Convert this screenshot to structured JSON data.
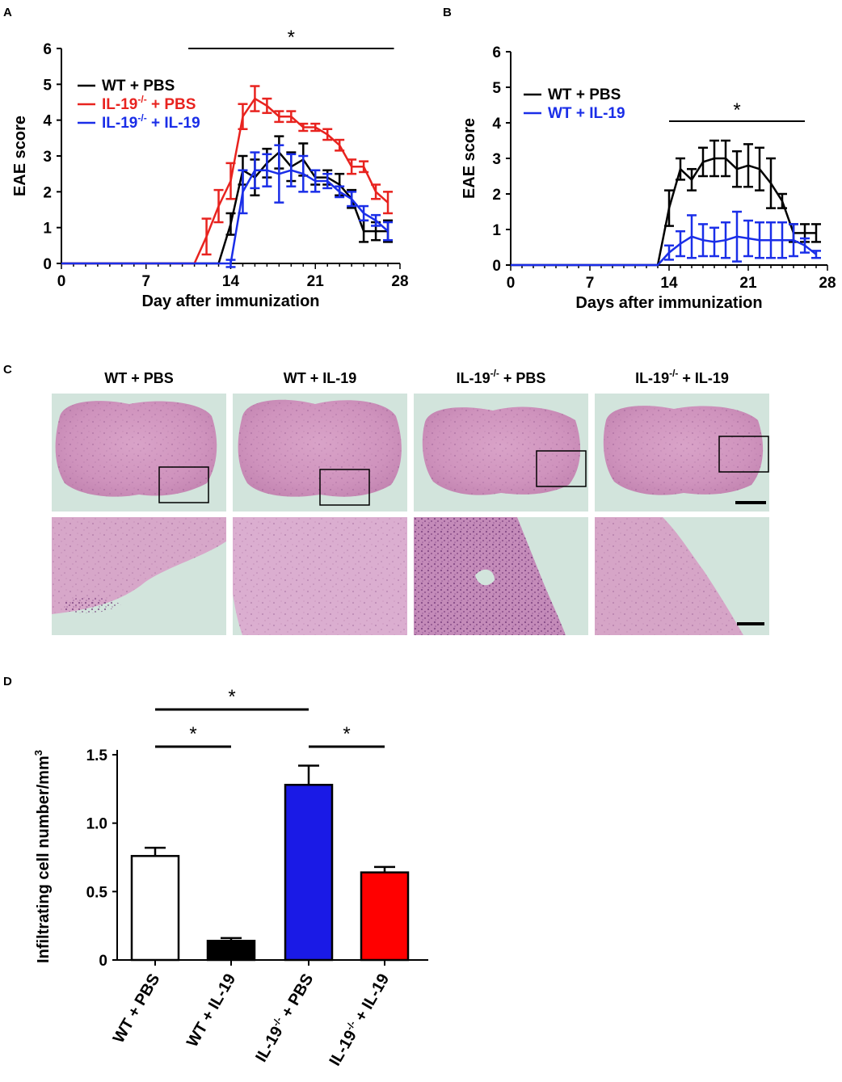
{
  "chart_data": [
    {
      "panel": "A",
      "type": "line",
      "xlabel": "Day after immunization",
      "ylabel": "EAE score",
      "xlim": [
        0,
        28
      ],
      "ylim": [
        0,
        6
      ],
      "xticks": [
        "0",
        "7",
        "14",
        "21",
        "28"
      ],
      "yticks": [
        "0",
        "1",
        "2",
        "3",
        "4",
        "5",
        "6"
      ],
      "significance": "*",
      "legend_position": "top-left",
      "series": [
        {
          "name": "WT + PBS",
          "name_base": "WT + PBS",
          "color": "#000000",
          "x": [
            0,
            1,
            2,
            3,
            4,
            5,
            6,
            7,
            8,
            9,
            10,
            11,
            12,
            13,
            14,
            15,
            16,
            17,
            18,
            19,
            20,
            21,
            22,
            23,
            24,
            25,
            26,
            27
          ],
          "values": [
            0,
            0,
            0,
            0,
            0,
            0,
            0,
            0,
            0,
            0,
            0,
            0,
            0,
            0,
            1.1,
            2.6,
            2.4,
            2.8,
            3.1,
            2.7,
            2.9,
            2.4,
            2.4,
            2.2,
            1.8,
            0.9,
            0.9,
            0.9
          ],
          "errors": [
            0,
            0,
            0,
            0,
            0,
            0,
            0,
            0,
            0,
            0,
            0,
            0,
            0,
            0,
            0.3,
            0.4,
            0.5,
            0.4,
            0.45,
            0.4,
            0.45,
            0.2,
            0.2,
            0.3,
            0.25,
            0.3,
            0.25,
            0.3
          ]
        },
        {
          "name": "IL-19-/- + PBS",
          "name_base": "IL-19",
          "name_sup": "-/-",
          "name_rest": " + PBS",
          "color": "#e8231f",
          "x": [
            0,
            1,
            2,
            3,
            4,
            5,
            6,
            7,
            8,
            9,
            10,
            11,
            12,
            13,
            14,
            15,
            16,
            17,
            18,
            19,
            20,
            21,
            22,
            23,
            24,
            25,
            26,
            27
          ],
          "values": [
            0,
            0,
            0,
            0,
            0,
            0,
            0,
            0,
            0,
            0,
            0,
            0,
            0.75,
            1.6,
            2.3,
            4.1,
            4.6,
            4.4,
            4.1,
            4.1,
            3.8,
            3.8,
            3.6,
            3.3,
            2.7,
            2.7,
            2.0,
            1.7
          ],
          "errors": [
            0,
            0,
            0,
            0,
            0,
            0,
            0,
            0,
            0,
            0,
            0,
            0,
            0.5,
            0.45,
            0.5,
            0.35,
            0.35,
            0.2,
            0.15,
            0.15,
            0.1,
            0.1,
            0.15,
            0.15,
            0.2,
            0.15,
            0.2,
            0.3
          ]
        },
        {
          "name": "IL-19-/- + IL-19",
          "name_base": "IL-19",
          "name_sup": "-/-",
          "name_rest": " + IL-19",
          "color": "#1a2ee8",
          "x": [
            0,
            1,
            2,
            3,
            4,
            5,
            6,
            7,
            8,
            9,
            10,
            11,
            12,
            13,
            14,
            15,
            16,
            17,
            18,
            19,
            20,
            21,
            22,
            23,
            24,
            25,
            26,
            27
          ],
          "values": [
            0,
            0,
            0,
            0,
            0,
            0,
            0,
            0,
            0,
            0,
            0,
            0,
            0,
            0,
            0,
            2.0,
            2.6,
            2.6,
            2.5,
            2.6,
            2.5,
            2.3,
            2.3,
            2.0,
            1.8,
            1.4,
            1.2,
            0.9
          ],
          "errors": [
            0,
            0,
            0,
            0,
            0,
            0,
            0,
            0,
            0,
            0,
            0,
            0,
            0,
            0,
            0.1,
            0.6,
            0.5,
            0.45,
            0.8,
            0.45,
            0.5,
            0.3,
            0.2,
            0.15,
            0.2,
            0.2,
            0.15,
            0.25
          ]
        }
      ]
    },
    {
      "panel": "B",
      "type": "line",
      "xlabel": "Days after immunization",
      "ylabel": "EAE score",
      "xlim": [
        0,
        28
      ],
      "ylim": [
        0,
        6
      ],
      "xticks": [
        "0",
        "7",
        "14",
        "21",
        "28"
      ],
      "yticks": [
        "0",
        "1",
        "2",
        "3",
        "4",
        "5",
        "6"
      ],
      "significance": "*",
      "legend_position": "top-left",
      "series": [
        {
          "name": "WT + PBS",
          "name_base": "WT + PBS",
          "color": "#000000",
          "x": [
            0,
            1,
            2,
            3,
            4,
            5,
            6,
            7,
            8,
            9,
            10,
            11,
            12,
            13,
            14,
            15,
            16,
            17,
            18,
            19,
            20,
            21,
            22,
            23,
            24,
            25,
            26,
            27
          ],
          "values": [
            0,
            0,
            0,
            0,
            0,
            0,
            0,
            0,
            0,
            0,
            0,
            0,
            0,
            0,
            1.6,
            2.7,
            2.4,
            2.9,
            3.0,
            3.0,
            2.7,
            2.8,
            2.7,
            2.3,
            1.8,
            0.9,
            0.9,
            0.9
          ],
          "errors": [
            0,
            0,
            0,
            0,
            0,
            0,
            0,
            0,
            0,
            0,
            0,
            0,
            0,
            0,
            0.5,
            0.3,
            0.3,
            0.4,
            0.5,
            0.5,
            0.5,
            0.6,
            0.6,
            0.7,
            0.2,
            0.25,
            0.25,
            0.25
          ]
        },
        {
          "name": "WT + IL-19",
          "name_base": "WT + IL-19",
          "color": "#1a2ee8",
          "x": [
            0,
            1,
            2,
            3,
            4,
            5,
            6,
            7,
            8,
            9,
            10,
            11,
            12,
            13,
            14,
            15,
            16,
            17,
            18,
            19,
            20,
            21,
            22,
            23,
            24,
            25,
            26,
            27
          ],
          "values": [
            0,
            0,
            0,
            0,
            0,
            0,
            0,
            0,
            0,
            0,
            0,
            0,
            0,
            0,
            0.35,
            0.6,
            0.8,
            0.7,
            0.65,
            0.7,
            0.8,
            0.75,
            0.7,
            0.7,
            0.7,
            0.7,
            0.55,
            0.3
          ],
          "errors": [
            0,
            0,
            0,
            0,
            0,
            0,
            0,
            0,
            0,
            0,
            0,
            0,
            0,
            0,
            0.2,
            0.35,
            0.6,
            0.45,
            0.4,
            0.5,
            0.7,
            0.5,
            0.5,
            0.5,
            0.5,
            0.45,
            0.2,
            0.1
          ]
        }
      ]
    },
    {
      "panel": "D",
      "type": "bar",
      "ylabel": "Infiltrating cell number/mm",
      "ylabel_sup": "3",
      "ylim": [
        0,
        1.5
      ],
      "yticks": [
        "0",
        "0.5",
        "1.0",
        "1.5"
      ],
      "categories": [
        {
          "base": "WT + PBS",
          "sup": "",
          "rest": ""
        },
        {
          "base": "WT + IL-19",
          "sup": "",
          "rest": ""
        },
        {
          "base": "IL-19",
          "sup": "-/-",
          "rest": " + PBS"
        },
        {
          "base": "IL-19",
          "sup": "-/-",
          "rest": " + IL-19"
        }
      ],
      "values": [
        0.76,
        0.14,
        1.28,
        0.64
      ],
      "errors": [
        0.06,
        0.02,
        0.14,
        0.04
      ],
      "colors": [
        "#ffffff",
        "#000000",
        "#1a1ae6",
        "#ff0000"
      ],
      "significance": [
        {
          "from": 0,
          "to": 1,
          "label": "*"
        },
        {
          "from": 0,
          "to": 2,
          "label": "*"
        },
        {
          "from": 2,
          "to": 3,
          "label": "*"
        }
      ]
    }
  ],
  "panels": {
    "a_letter": "A",
    "b_letter": "B",
    "c_letter": "C",
    "d_letter": "D"
  },
  "micrographs": {
    "columns": [
      {
        "base": "WT + PBS",
        "sup": "",
        "rest": ""
      },
      {
        "base": "WT + IL-19",
        "sup": "",
        "rest": ""
      },
      {
        "base": "IL-19",
        "sup": "-/-",
        "rest": " + PBS"
      },
      {
        "base": "IL-19",
        "sup": "-/-",
        "rest": " + IL-19"
      }
    ]
  }
}
